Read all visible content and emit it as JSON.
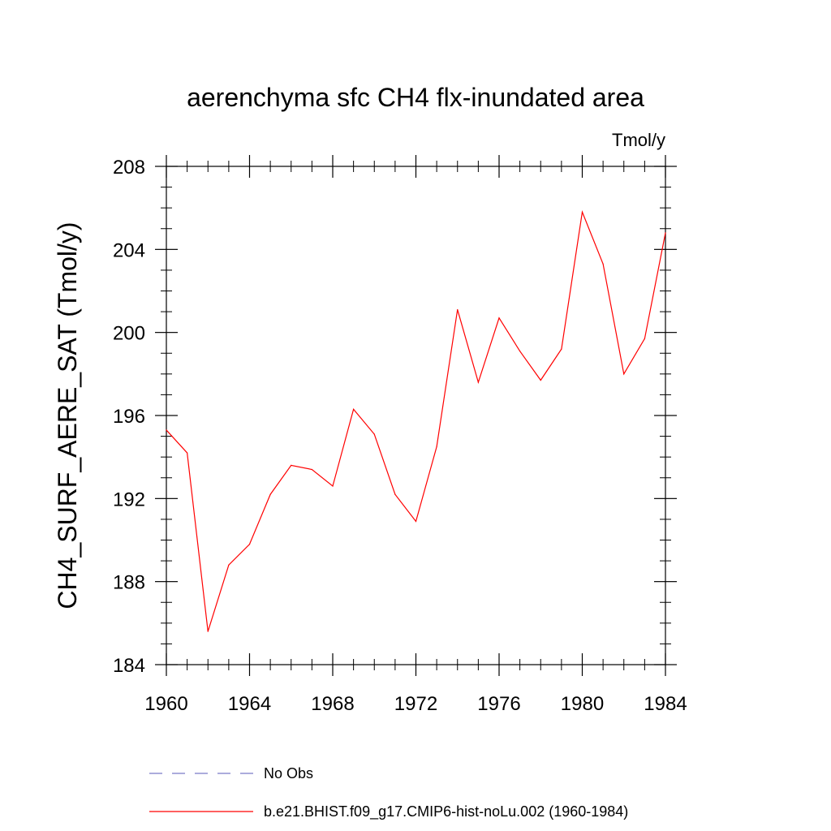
{
  "chart_data": {
    "type": "line",
    "title": "aerenchyma sfc CH4 flx-inundated area",
    "units_label": "Tmol/y",
    "xlabel": "",
    "ylabel": "CH4_SURF_AERE_SAT  (Tmol/y)",
    "xlim": [
      1960,
      1984
    ],
    "ylim": [
      184,
      208
    ],
    "x_ticks": [
      1960,
      1964,
      1968,
      1972,
      1976,
      1980,
      1984
    ],
    "x_tick_labels": [
      "1960",
      "1964",
      "1968",
      "1972",
      "1976",
      "1980",
      "1984"
    ],
    "y_ticks": [
      184,
      188,
      192,
      196,
      200,
      204,
      208
    ],
    "y_tick_labels": [
      "184",
      "188",
      "192",
      "196",
      "200",
      "204",
      "208"
    ],
    "grid": false,
    "legend_position": "bottom",
    "series": [
      {
        "name": "b.e21.BHIST.f09_g17.CMIP6-hist-noLu.002 (1960-1984)",
        "color": "#ff0000",
        "x": [
          1960,
          1961,
          1962,
          1963,
          1964,
          1965,
          1966,
          1967,
          1968,
          1969,
          1970,
          1971,
          1972,
          1973,
          1974,
          1975,
          1976,
          1977,
          1978,
          1979,
          1980,
          1981,
          1982,
          1983,
          1984
        ],
        "y": [
          195.3,
          194.2,
          185.6,
          188.8,
          189.8,
          192.2,
          193.6,
          193.4,
          192.6,
          196.3,
          195.1,
          192.2,
          190.9,
          194.5,
          201.1,
          197.6,
          200.7,
          199.1,
          197.7,
          199.2,
          205.8,
          203.3,
          198.0,
          199.7,
          204.8
        ]
      }
    ],
    "legend": [
      {
        "label": "No Obs",
        "style": "dashed",
        "color": "#7b7bc8"
      },
      {
        "label": "b.e21.BHIST.f09_g17.CMIP6-hist-noLu.002 (1960-1984)",
        "style": "solid",
        "color": "#ff0000"
      }
    ]
  }
}
